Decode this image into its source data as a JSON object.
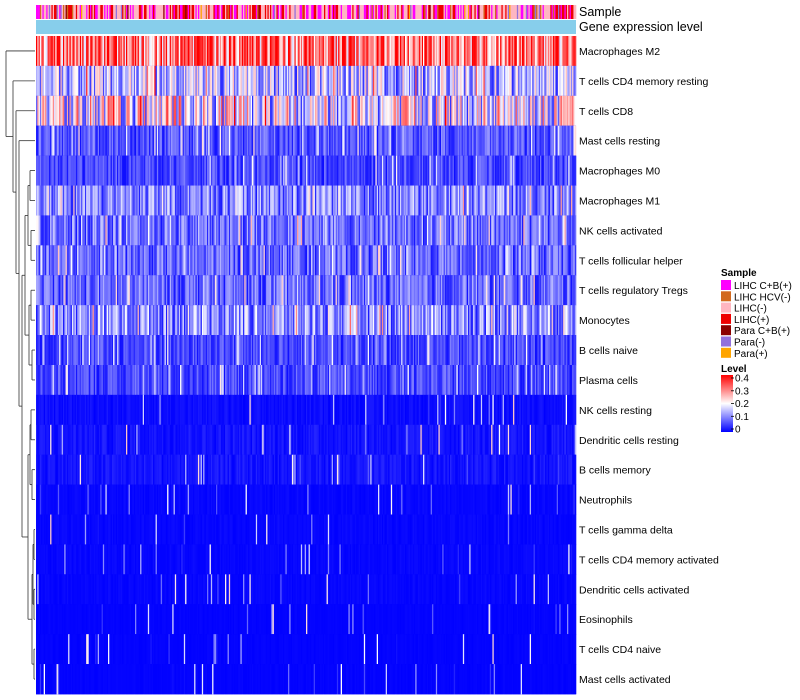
{
  "chart_data": {
    "type": "heatmap",
    "title": "",
    "row_labels": [
      "Macrophages M2",
      "T cells CD4 memory resting",
      "T cells CD8",
      "Mast cells resting",
      "Macrophages M0",
      "Macrophages M1",
      "NK cells activated",
      "T cells follicular helper",
      "T cells regulatory  Tregs",
      "Monocytes",
      "B cells naive",
      "Plasma cells",
      "NK cells resting",
      "Dendritic cells resting",
      "B cells memory",
      "Neutrophils",
      "T cells gamma delta",
      "T cells CD4 memory activated",
      "Dendritic cells activated",
      "Eosinophils",
      "T cells CD4 naive",
      "Mast cells activated"
    ],
    "row_mean_level": [
      0.3,
      0.13,
      0.17,
      0.06,
      0.05,
      0.09,
      0.08,
      0.07,
      0.07,
      0.1,
      0.05,
      0.05,
      0.02,
      0.03,
      0.03,
      0.01,
      0.01,
      0.01,
      0.01,
      0.005,
      0.005,
      0.005
    ],
    "annotations": {
      "sample_label": "Sample",
      "gene_label": "Gene expression level"
    },
    "sample_legend": {
      "title": "Sample",
      "entries": [
        {
          "label": "LIHC C+B(+)",
          "color": "#ff00ff"
        },
        {
          "label": "LIHC HCV(-)",
          "color": "#d2691e"
        },
        {
          "label": "LIHC(-)",
          "color": "#ffb6c1"
        },
        {
          "label": "LIHC(+)",
          "color": "#ee0000"
        },
        {
          "label": "Para C+B(+)",
          "color": "#8b0000"
        },
        {
          "label": "Para(-)",
          "color": "#9370db"
        },
        {
          "label": "Para(+)",
          "color": "#ffa500"
        }
      ]
    },
    "level_legend": {
      "title": "Level",
      "ticks": [
        "0.4",
        "0.3",
        "0.2",
        "0.1",
        "0"
      ],
      "range": [
        0,
        0.4
      ],
      "colors": [
        "#0000ff",
        "#ffffff",
        "#ff0000"
      ]
    },
    "gene_expression_color": "#87ceeb",
    "n_samples": 420
  }
}
